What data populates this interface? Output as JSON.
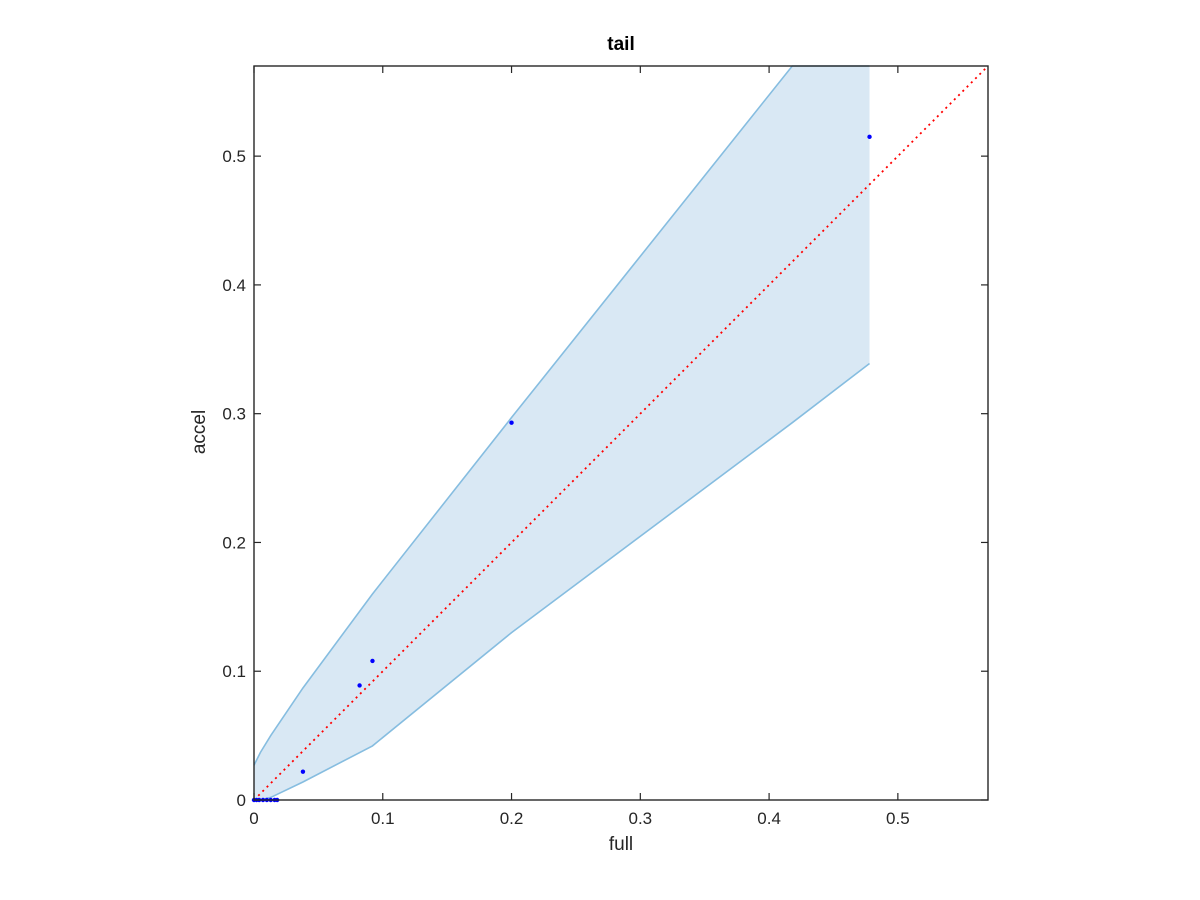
{
  "chart_data": {
    "type": "scatter",
    "title": "tail",
    "xlabel": "full",
    "ylabel": "accel",
    "xlim": [
      0,
      0.57
    ],
    "ylim": [
      0,
      0.57
    ],
    "xticks": [
      0,
      0.1,
      0.2,
      0.3,
      0.4,
      0.5
    ],
    "yticks": [
      0,
      0.1,
      0.2,
      0.3,
      0.4,
      0.5
    ],
    "xtick_labels": [
      "0",
      "0.1",
      "0.2",
      "0.3",
      "0.4",
      "0.5"
    ],
    "ytick_labels": [
      "0",
      "0.1",
      "0.2",
      "0.3",
      "0.4",
      "0.5"
    ],
    "grid": false,
    "points": {
      "color": "#0000ff",
      "x": [
        0,
        0.002,
        0.004,
        0.007,
        0.01,
        0.013,
        0.016,
        0.018,
        0.038,
        0.082,
        0.092,
        0.2,
        0.478
      ],
      "y": [
        0,
        0,
        0,
        0,
        0,
        0,
        0,
        0,
        0.022,
        0.089,
        0.108,
        0.293,
        0.515
      ]
    },
    "band": {
      "color": "#d9e8f4",
      "edge_color": "#86bde0",
      "x": [
        0,
        0.005,
        0.013,
        0.038,
        0.092,
        0.2,
        0.418,
        0.478
      ],
      "upper": [
        0.027,
        0.037,
        0.05,
        0.087,
        0.16,
        0.297,
        0.57,
        0.57
      ],
      "lower": [
        0,
        0,
        0.002,
        0.014,
        0.042,
        0.13,
        0.293,
        0.339
      ]
    },
    "reference_line": {
      "type": "identity",
      "color": "#ff0000",
      "style": "dotted",
      "x": [
        0,
        0.57
      ],
      "y": [
        0,
        0.57
      ]
    }
  }
}
